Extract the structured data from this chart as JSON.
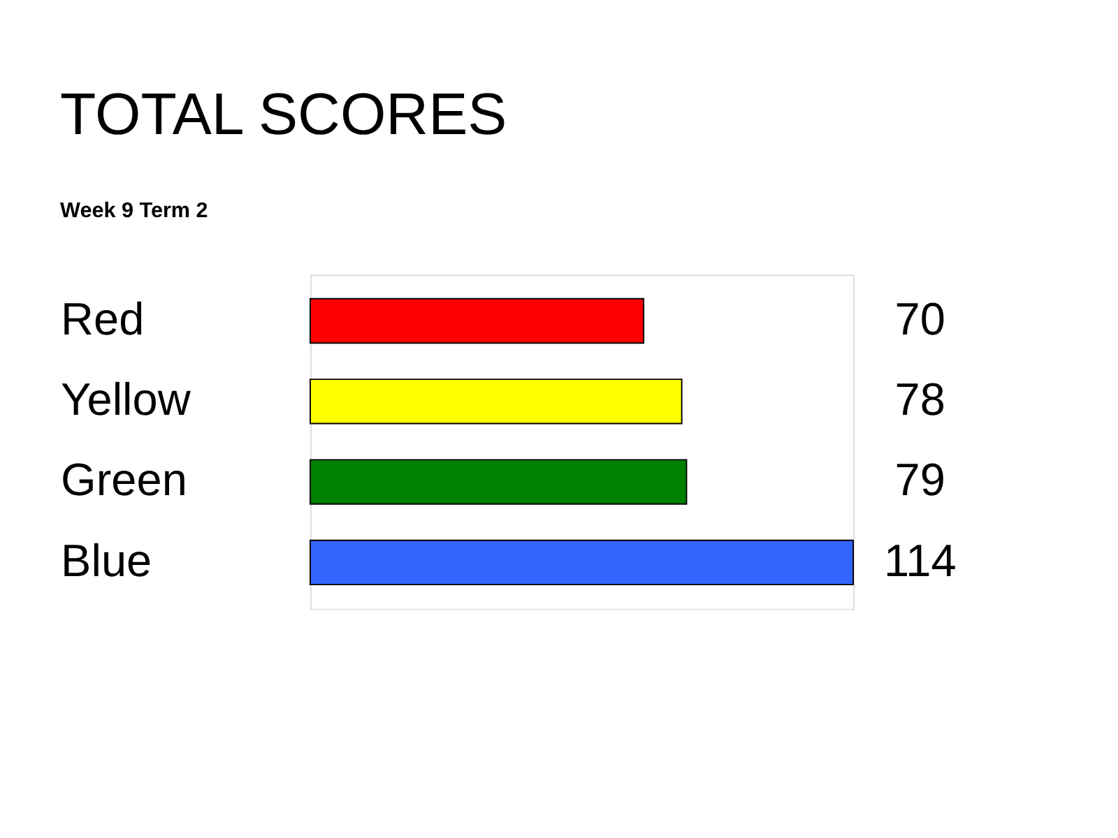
{
  "chart_data": {
    "type": "bar",
    "orientation": "horizontal",
    "title": "TOTAL SCORES",
    "subtitle": "Week 9 Term 2",
    "categories": [
      "Red",
      "Yellow",
      "Green",
      "Blue"
    ],
    "values": [
      70,
      78,
      79,
      114
    ],
    "colors": [
      "#ff0000",
      "#ffff00",
      "#008000",
      "#3366ff"
    ],
    "data_labels": true,
    "tick_labels": "y"
  }
}
